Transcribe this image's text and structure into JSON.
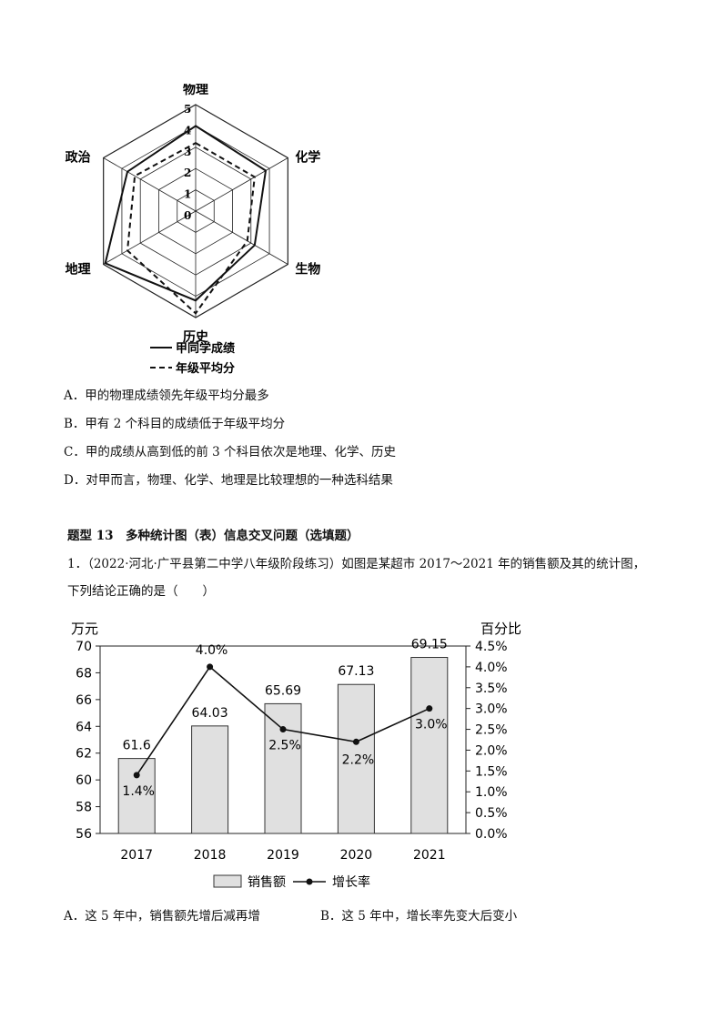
{
  "radar": {
    "axes": [
      "物理",
      "化学",
      "生物",
      "历史",
      "地理",
      "政治"
    ],
    "scale_labels": [
      "5",
      "4",
      "3",
      "2",
      "1",
      "0"
    ],
    "max": 5,
    "student": [
      4,
      3.8,
      3.2,
      4.2,
      4.9,
      3.7
    ],
    "average": [
      3.2,
      3.2,
      2.8,
      4.8,
      3.7,
      3.3
    ],
    "legend": [
      "甲同学成绩",
      "年级平均分"
    ]
  },
  "options_top": [
    "A．甲的物理成绩领先年级平均分最多",
    "B．甲有 2 个科目的成绩低于年级平均分",
    "C．甲的成绩从高到低的前 3 个科目依次是地理、化学、历史",
    "D．对甲而言，物理、化学、地理是比较理想的一种选科结果"
  ],
  "section_title": "题型 13　多种统计图（表）信息交叉问题（选填题）",
  "question": {
    "line1": "1．（2022·河北·广平县第二中学八年级阶段练习）如图是某超市 2017～2021 年的销售额及其的统计图，",
    "line2": "下列结论正确的是（　　）"
  },
  "chart_data": {
    "type": "bar",
    "categories": [
      "2017",
      "2018",
      "2019",
      "2020",
      "2021"
    ],
    "series": [
      {
        "name": "销售额",
        "values": [
          61.6,
          64.03,
          65.69,
          67.13,
          69.15
        ],
        "labels": [
          "61.6",
          "64.03",
          "65.69",
          "67.13",
          "69.15"
        ]
      },
      {
        "name": "增长率",
        "values": [
          1.4,
          4.0,
          2.5,
          2.2,
          3.0
        ],
        "labels": [
          "1.4%",
          "4.0%",
          "2.5%",
          "2.2%",
          "3.0%"
        ]
      }
    ],
    "ylabel": "万元",
    "y2label": "百分比",
    "ylim": [
      56,
      70
    ],
    "y2lim": [
      0,
      4.5
    ],
    "yticks": [
      "70",
      "68",
      "66",
      "64",
      "62",
      "60",
      "58",
      "56"
    ],
    "y2ticks": [
      "4.5%",
      "4.0%",
      "3.5%",
      "3.0%",
      "2.5%",
      "2.0%",
      "1.5%",
      "1.0%",
      "0.5%",
      "0.0%"
    ],
    "legend": [
      "销售额",
      "增长率"
    ],
    "legend_position": "bottom",
    "bar_color": "#e0e0e0"
  },
  "options_bottom": [
    "A．这 5 年中，销售额先增后减再增",
    "B．这 5 年中，增长率先变大后变小"
  ]
}
